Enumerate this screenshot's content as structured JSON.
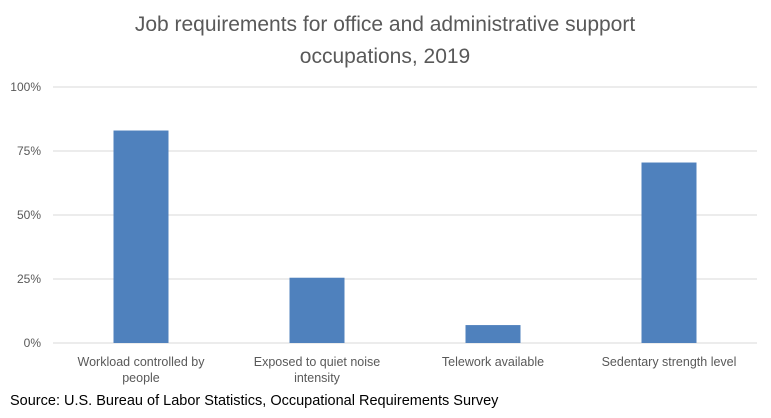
{
  "chart_data": {
    "type": "bar",
    "title_lines": [
      "Job requirements for office and administrative support",
      "occupations, 2019"
    ],
    "categories": [
      [
        "Workload controlled by",
        "people"
      ],
      [
        "Exposed to quiet noise",
        "intensity"
      ],
      [
        "Telework available"
      ],
      [
        "Sedentary strength level"
      ]
    ],
    "values": [
      83,
      25.5,
      7,
      70.5
    ],
    "ylim": [
      0,
      100
    ],
    "yticks": [
      0,
      25,
      50,
      75,
      100
    ],
    "ytick_labels": [
      "0%",
      "25%",
      "50%",
      "75%",
      "100%"
    ],
    "grid": true,
    "bar_color": "#4f81bd",
    "grid_color": "#d9d9d9"
  },
  "source_note": "Source: U.S. Bureau of Labor Statistics, Occupational Requirements Survey"
}
